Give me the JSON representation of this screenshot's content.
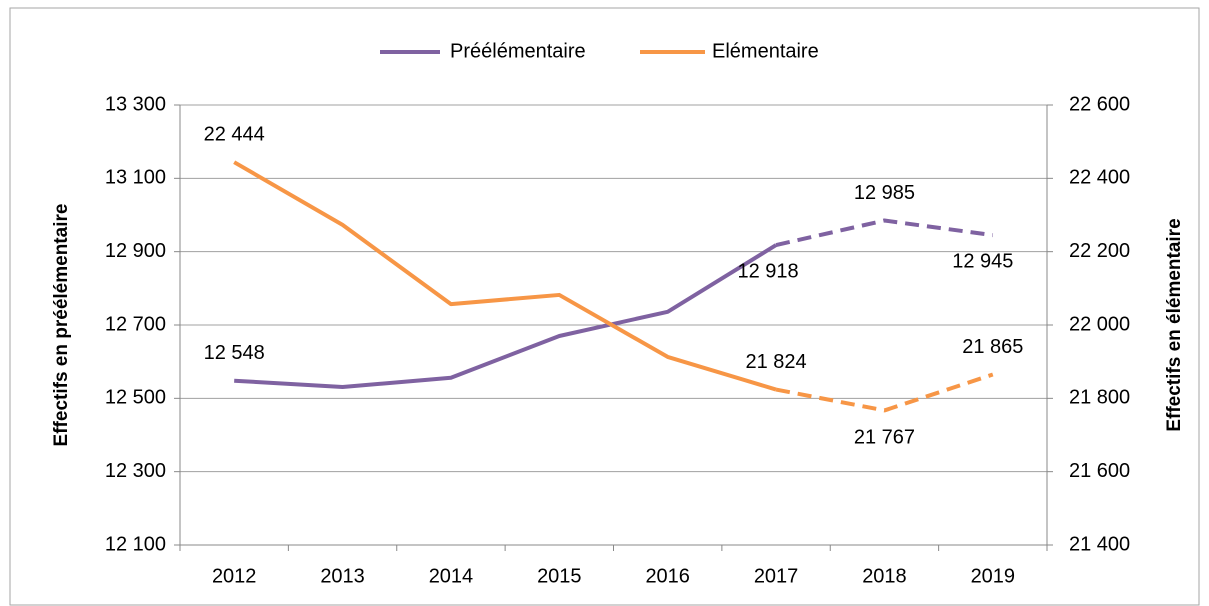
{
  "chart_data": {
    "type": "line",
    "categories": [
      "2012",
      "2013",
      "2014",
      "2015",
      "2016",
      "2017",
      "2018",
      "2019"
    ],
    "series": [
      {
        "name": "Préélémentaire",
        "color": "#7f62a1",
        "values": [
          12548,
          12531,
          12556,
          12670,
          12736,
          12918,
          12985,
          12945
        ],
        "value_labels": [
          "12 548",
          null,
          null,
          null,
          null,
          "12 918",
          "12 985",
          "12 945"
        ]
      },
      {
        "name": "Elémentaire",
        "color": "#f79646",
        "axis": "y2",
        "values": [
          22444,
          22273,
          22057,
          22082,
          21913,
          21824,
          21767,
          21865
        ],
        "value_labels": [
          "22 444",
          null,
          null,
          null,
          null,
          "21 824",
          "21 767",
          "21 865"
        ]
      }
    ],
    "dash_from": "2017",
    "ylabel": "Effectifs en préélémentaire",
    "y2label": "Effectifs en élémentaire",
    "ylim": [
      12100,
      13300
    ],
    "yticks": [
      {
        "value": 12100,
        "label": "12 100"
      },
      {
        "value": 12300,
        "label": "12 300"
      },
      {
        "value": 12500,
        "label": "12 500"
      },
      {
        "value": 12700,
        "label": "12 700"
      },
      {
        "value": 12900,
        "label": "12 900"
      },
      {
        "value": 13100,
        "label": "13 100"
      },
      {
        "value": 13300,
        "label": "13 300"
      }
    ],
    "y2lim": [
      21400,
      22600
    ],
    "y2ticks": [
      {
        "value": 21400,
        "label": "21 400"
      },
      {
        "value": 21600,
        "label": "21 600"
      },
      {
        "value": 21800,
        "label": "21 800"
      },
      {
        "value": 22000,
        "label": "22 000"
      },
      {
        "value": 22200,
        "label": "22 200"
      },
      {
        "value": 22400,
        "label": "22 400"
      },
      {
        "value": 22600,
        "label": "22 600"
      }
    ],
    "grid": true,
    "legend": "top"
  }
}
